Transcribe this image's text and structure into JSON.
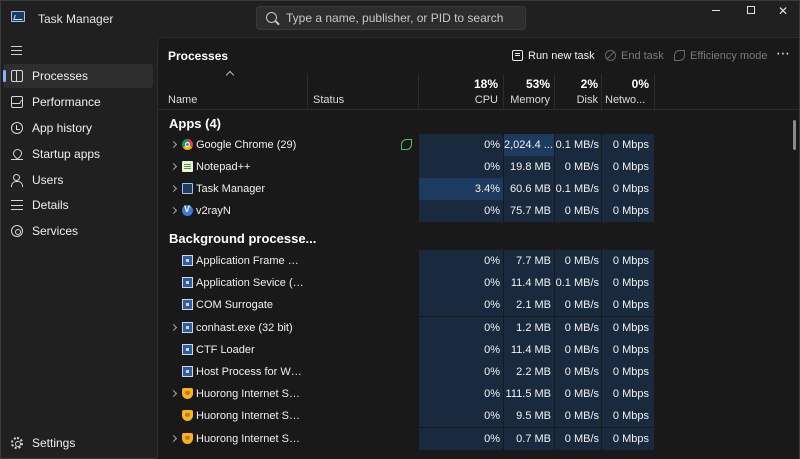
{
  "window": {
    "title": "Task Manager",
    "search_placeholder": "Type a name, publisher, or PID to search",
    "minimize": "—",
    "maximize": "□",
    "close": "✕"
  },
  "sidebar": {
    "items": [
      {
        "label": "Processes",
        "icon": "processes-icon",
        "active": true
      },
      {
        "label": "Performance",
        "icon": "performance-icon"
      },
      {
        "label": "App history",
        "icon": "app-history-icon"
      },
      {
        "label": "Startup apps",
        "icon": "startup-apps-icon"
      },
      {
        "label": "Users",
        "icon": "users-icon"
      },
      {
        "label": "Details",
        "icon": "details-icon"
      },
      {
        "label": "Services",
        "icon": "services-icon"
      }
    ],
    "settings_label": "Settings"
  },
  "toolbar": {
    "title": "Processes",
    "run_new_task": "Run new task",
    "end_task": "End task",
    "efficiency_mode": "Efficiency mode",
    "more": "⋯"
  },
  "columns": {
    "name": "Name",
    "status": "Status",
    "cpu_pct": "18%",
    "cpu": "CPU",
    "memory_pct": "53%",
    "memory": "Memory",
    "disk_pct": "2%",
    "disk": "Disk",
    "network_pct": "0%",
    "network": "Netwo..."
  },
  "groups": {
    "apps": "Apps (4)",
    "background": "Background processe..."
  },
  "apps": [
    {
      "name": "Google Chrome (29)",
      "icon": "chrome-icon",
      "expandable": true,
      "efficiency": true,
      "cpu": "0%",
      "memory": "2,024.4 ...",
      "disk": "0.1 MB/s",
      "network": "0 Mbps"
    },
    {
      "name": "Notepad++",
      "icon": "notepad-icon",
      "expandable": true,
      "cpu": "0%",
      "memory": "19.8 MB",
      "disk": "0 MB/s",
      "network": "0 Mbps"
    },
    {
      "name": "Task Manager",
      "icon": "task-manager-icon",
      "expandable": true,
      "cpu": "3.4%",
      "memory": "60.6 MB",
      "disk": "0.1 MB/s",
      "network": "0 Mbps"
    },
    {
      "name": "v2rayN",
      "icon": "v2rayn-icon",
      "expandable": true,
      "cpu": "0%",
      "memory": "75.7 MB",
      "disk": "0 MB/s",
      "network": "0 Mbps"
    }
  ],
  "background": [
    {
      "name": "Application Frame H...",
      "icon": "window-icon",
      "expandable": false,
      "cpu": "0%",
      "memory": "7.7 MB",
      "disk": "0 MB/s",
      "network": "0 Mbps"
    },
    {
      "name": "Application Sevice (3...",
      "icon": "window-icon",
      "expandable": false,
      "cpu": "0%",
      "memory": "11.4 MB",
      "disk": "0.1 MB/s",
      "network": "0 Mbps"
    },
    {
      "name": "COM Surrogate",
      "icon": "window-icon",
      "expandable": false,
      "cpu": "0%",
      "memory": "2.1 MB",
      "disk": "0 MB/s",
      "network": "0 Mbps"
    },
    {
      "name": "conhast.exe (32 bit)",
      "icon": "window-icon",
      "expandable": true,
      "cpu": "0%",
      "memory": "1.2 MB",
      "disk": "0 MB/s",
      "network": "0 Mbps"
    },
    {
      "name": "CTF Loader",
      "icon": "window-icon",
      "expandable": false,
      "cpu": "0%",
      "memory": "11.4 MB",
      "disk": "0 MB/s",
      "network": "0 Mbps"
    },
    {
      "name": "Host Process for Win...",
      "icon": "window-icon",
      "expandable": false,
      "cpu": "0%",
      "memory": "2.2 MB",
      "disk": "0 MB/s",
      "network": "0 Mbps"
    },
    {
      "name": "Huorong Internet Sec...",
      "icon": "shield-icon",
      "expandable": true,
      "cpu": "0%",
      "memory": "111.5 MB",
      "disk": "0 MB/s",
      "network": "0 Mbps"
    },
    {
      "name": "Huorong Internet Sec...",
      "icon": "shield-icon",
      "expandable": false,
      "cpu": "0%",
      "memory": "9.5 MB",
      "disk": "0 MB/s",
      "network": "0 Mbps"
    },
    {
      "name": "Huorong Internet Sec...",
      "icon": "shield-icon",
      "expandable": true,
      "cpu": "0%",
      "memory": "0.7 MB",
      "disk": "0 MB/s",
      "network": "0 Mbps"
    }
  ],
  "colors": {
    "background": "#202020",
    "panel": "#191919",
    "heat_low": "#192a3f",
    "heat_mid": "#1d3a60",
    "heat_high": "#23477a",
    "accent": "#8ab4f8",
    "efficiency": "#4fc16a"
  }
}
